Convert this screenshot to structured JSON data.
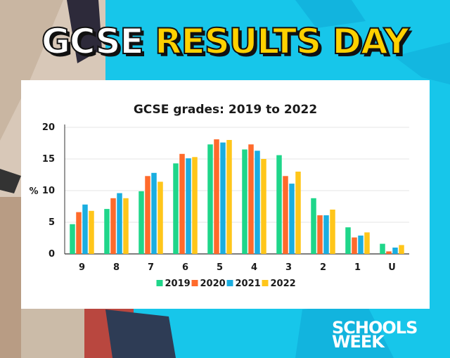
{
  "headline": {
    "word1": "GCSE",
    "word2": "RESULTS DAY"
  },
  "logo": {
    "line1": "SCHOOLS",
    "line2": "WEEK"
  },
  "colors": {
    "background": "#17c6ea",
    "headline_yellow": "#ffd100",
    "series": [
      "#1fd68a",
      "#ff6a2b",
      "#1aaee0",
      "#ffc61a"
    ]
  },
  "chart_data": {
    "type": "bar",
    "title": "GCSE grades: 2019 to 2022",
    "xlabel": "",
    "ylabel": "%",
    "ylim": [
      0,
      20
    ],
    "yticks": [
      0,
      5,
      10,
      15,
      20
    ],
    "categories": [
      "9",
      "8",
      "7",
      "6",
      "5",
      "4",
      "3",
      "2",
      "1",
      "U"
    ],
    "legend_position": "bottom",
    "grid": true,
    "series": [
      {
        "name": "2019",
        "values": [
          4.7,
          7.1,
          9.9,
          14.3,
          17.3,
          16.5,
          15.6,
          8.8,
          4.2,
          1.6
        ]
      },
      {
        "name": "2020",
        "values": [
          6.6,
          8.8,
          12.3,
          15.8,
          18.1,
          17.3,
          12.3,
          6.1,
          2.6,
          0.4
        ]
      },
      {
        "name": "2021",
        "values": [
          7.8,
          9.6,
          12.8,
          15.1,
          17.6,
          16.3,
          11.1,
          6.1,
          2.9,
          1.0
        ]
      },
      {
        "name": "2022",
        "values": [
          6.8,
          8.8,
          11.4,
          15.3,
          18.0,
          15.0,
          13.0,
          7.0,
          3.4,
          1.4
        ]
      }
    ]
  }
}
